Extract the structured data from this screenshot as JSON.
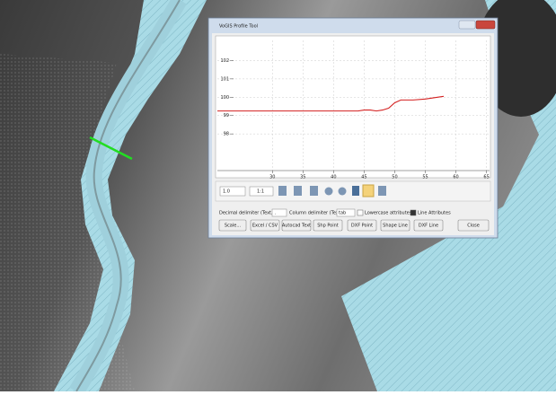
{
  "window": {
    "title": "VoGIS Profile Tool"
  },
  "chart_data": {
    "type": "line",
    "x": [
      21,
      30,
      40,
      44,
      45,
      46,
      47,
      48,
      49,
      50,
      51,
      53,
      55,
      57,
      58
    ],
    "series": [
      {
        "color": "#d42020",
        "values": [
          99.25,
          99.25,
          99.25,
          99.25,
          99.3,
          99.3,
          99.25,
          99.3,
          99.4,
          99.7,
          99.85,
          99.85,
          99.9,
          100,
          100.05
        ]
      }
    ],
    "xlim": [
      21,
      65.5
    ],
    "ylim": [
      96,
      103.1
    ],
    "xticks": [
      30,
      35,
      40,
      45,
      50,
      55,
      60,
      65
    ],
    "yticks": [
      98,
      99,
      100,
      101,
      102
    ],
    "grid": true
  },
  "toolbar": {
    "exaggeration": "1.0",
    "scale": "1:1"
  },
  "options": {
    "decimal_label": "Decimal delimiter (Text, csv):",
    "decimal_value": ".",
    "column_label": "Column delimiter (Text):",
    "column_value": "tab",
    "lowercase": "Lowercase attributes",
    "line_attributes": "Line Attributes"
  },
  "buttons": [
    "Scale...",
    "Excel / CSV",
    "Autocad Text",
    "Shp Point",
    "DXF Point",
    "Shape Line",
    "DXF Line",
    "Close"
  ]
}
